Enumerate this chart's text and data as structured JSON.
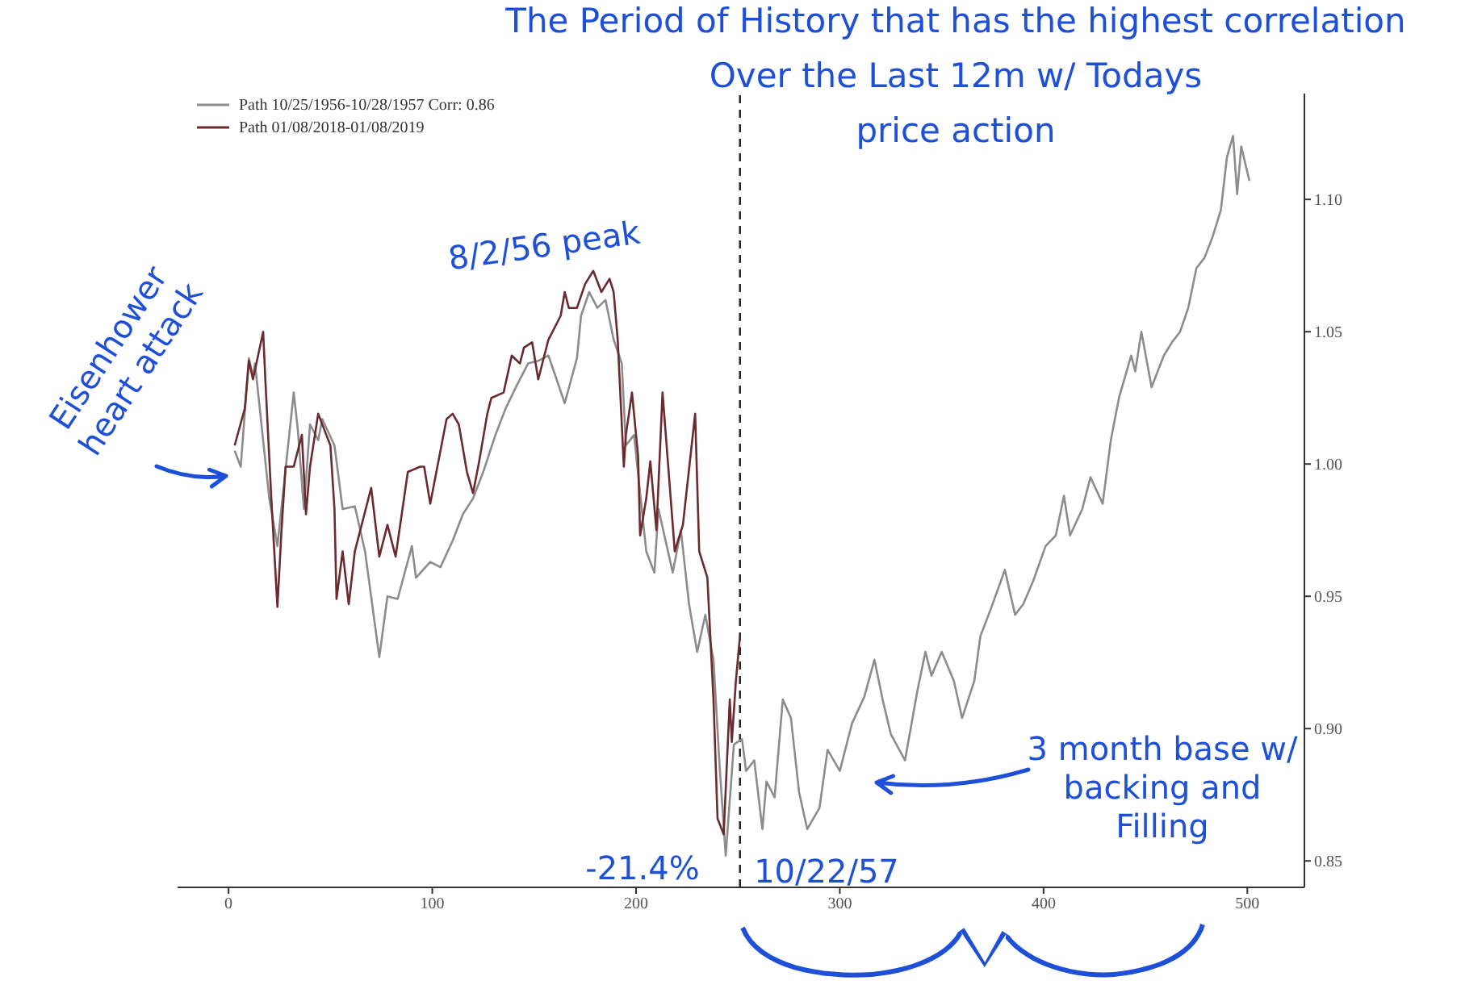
{
  "chart_data": {
    "type": "line",
    "title": "The Period of History that has the highest correlation\nOver the Last 12m w/ Todays\nprice action",
    "xlim": [
      -25,
      528
    ],
    "xticks": [
      0,
      100,
      200,
      300,
      400,
      500
    ],
    "ylim": [
      0.84,
      1.14
    ],
    "yticks": [
      0.85,
      {
        "value": 0.9,
        "label": "0.90"
      },
      0.95,
      {
        "value": 1.0,
        "label": "1.00"
      },
      1.05,
      {
        "value": 1.1,
        "label": "1.10"
      }
    ],
    "legend": "top left",
    "series": [
      {
        "name": "Path 10/25/1956-10/28/1957 Corr: 0.86",
        "color": "#8c8c8c",
        "x": [
          3,
          6,
          10,
          12,
          13,
          20,
          24,
          32,
          34,
          37,
          40,
          44,
          46,
          52,
          56,
          62,
          67,
          74,
          78,
          83,
          90,
          92,
          99,
          104,
          110,
          115,
          120,
          125,
          131,
          136,
          141,
          147,
          152,
          157,
          165,
          171,
          173,
          177,
          181,
          185,
          189,
          193,
          195,
          199,
          205,
          209,
          211,
          218,
          222,
          226,
          230,
          234,
          238,
          241,
          244,
          248,
          252,
          254,
          258,
          262,
          264,
          268,
          272,
          276,
          280,
          284,
          290,
          294,
          300,
          306,
          312,
          317,
          321,
          325,
          332,
          338,
          342,
          345,
          350,
          356,
          360,
          366,
          369,
          374,
          381,
          386,
          390,
          395,
          401,
          406,
          410,
          413,
          419,
          423,
          429,
          433,
          437,
          443,
          445,
          448,
          453,
          459,
          463,
          467,
          471,
          475,
          479,
          483,
          487,
          490,
          493,
          495,
          497,
          501
        ],
        "values": [
          1.005,
          0.999,
          1.04,
          1.033,
          1.038,
          0.987,
          0.969,
          1.027,
          1.013,
          0.983,
          1.015,
          1.009,
          1.017,
          1.007,
          0.983,
          0.984,
          0.967,
          0.927,
          0.95,
          0.949,
          0.969,
          0.957,
          0.963,
          0.961,
          0.971,
          0.981,
          0.987,
          0.997,
          1.011,
          1.021,
          1.029,
          1.038,
          1.039,
          1.041,
          1.023,
          1.04,
          1.056,
          1.065,
          1.059,
          1.062,
          1.047,
          1.038,
          1.007,
          1.011,
          0.967,
          0.959,
          0.983,
          0.959,
          0.975,
          0.947,
          0.929,
          0.943,
          0.926,
          0.886,
          0.852,
          0.894,
          0.896,
          0.884,
          0.888,
          0.862,
          0.88,
          0.874,
          0.911,
          0.904,
          0.876,
          0.862,
          0.87,
          0.892,
          0.884,
          0.902,
          0.912,
          0.926,
          0.911,
          0.898,
          0.888,
          0.914,
          0.929,
          0.92,
          0.929,
          0.918,
          0.904,
          0.918,
          0.935,
          0.945,
          0.96,
          0.943,
          0.947,
          0.956,
          0.969,
          0.973,
          0.988,
          0.973,
          0.983,
          0.995,
          0.985,
          1.009,
          1.025,
          1.041,
          1.035,
          1.05,
          1.029,
          1.041,
          1.046,
          1.05,
          1.059,
          1.074,
          1.078,
          1.086,
          1.096,
          1.116,
          1.124,
          1.102,
          1.12,
          1.107
        ]
      },
      {
        "name": "Path 01/08/2018-01/08/2019",
        "color": "#6b2a2e",
        "x": [
          3,
          8,
          10,
          12,
          17,
          18,
          21,
          24,
          26,
          28,
          32,
          36,
          38,
          40,
          44,
          48,
          50,
          52,
          53,
          56,
          59,
          62,
          70,
          74,
          78,
          82,
          88,
          94,
          96,
          99,
          102,
          107,
          110,
          113,
          117,
          120,
          123,
          127,
          129,
          135,
          139,
          143,
          145,
          149,
          152,
          157,
          163,
          165,
          167,
          171,
          175,
          179,
          183,
          187,
          189,
          191,
          194,
          195,
          198,
          201,
          202,
          205,
          207,
          210,
          213,
          215,
          219,
          223,
          229,
          231,
          235,
          238,
          240,
          243,
          246,
          247,
          249,
          251
        ],
        "values": [
          1.007,
          1.021,
          1.039,
          1.032,
          1.05,
          1.033,
          0.987,
          0.946,
          0.975,
          0.999,
          0.999,
          1.011,
          0.981,
          0.999,
          1.019,
          1.011,
          1.007,
          0.983,
          0.949,
          0.967,
          0.947,
          0.967,
          0.991,
          0.965,
          0.977,
          0.965,
          0.997,
          0.999,
          0.999,
          0.985,
          0.997,
          1.017,
          1.019,
          1.015,
          0.997,
          0.989,
          1.001,
          1.019,
          1.025,
          1.027,
          1.041,
          1.038,
          1.044,
          1.046,
          1.032,
          1.047,
          1.056,
          1.065,
          1.059,
          1.059,
          1.068,
          1.073,
          1.065,
          1.07,
          1.065,
          1.047,
          0.999,
          1.011,
          1.027,
          1.003,
          0.973,
          0.987,
          1.001,
          0.975,
          1.027,
          1.007,
          0.967,
          0.977,
          1.019,
          0.967,
          0.957,
          0.911,
          0.866,
          0.86,
          0.911,
          0.895,
          0.918,
          0.935
        ]
      }
    ],
    "ref_lines": [
      {
        "axis": "x",
        "value": 251,
        "color": "#222222",
        "line_style": "dashed"
      }
    ],
    "annotations": [
      "Eisenhower heart attack",
      "8/2/56 peak",
      "-21.4%",
      "10/22/57",
      "3 month base w/ backing and Filling"
    ]
  }
}
